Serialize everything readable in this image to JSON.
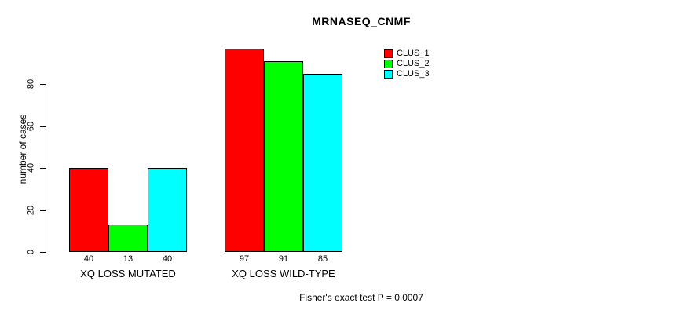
{
  "chart_data": {
    "type": "bar",
    "title": "MRNASEQ_CNMF",
    "subtitle": "Fisher's exact test P = 0.0007",
    "ylabel": "number of cases",
    "xlabel": "",
    "categories": [
      "XQ LOSS MUTATED",
      "XQ LOSS WILD-TYPE"
    ],
    "series": [
      {
        "name": "CLUS_1",
        "color": "#ff0000",
        "values": [
          40,
          97
        ]
      },
      {
        "name": "CLUS_2",
        "color": "#00ff00",
        "values": [
          13,
          91
        ]
      },
      {
        "name": "CLUS_3",
        "color": "#00ffff",
        "values": [
          40,
          85
        ]
      }
    ],
    "yticks": [
      0,
      20,
      40,
      60,
      80
    ],
    "ylim": [
      0,
      97
    ],
    "grid": false,
    "legend_position": "top-right",
    "bar_border_color": "#000000",
    "value_labels_shown": true
  }
}
